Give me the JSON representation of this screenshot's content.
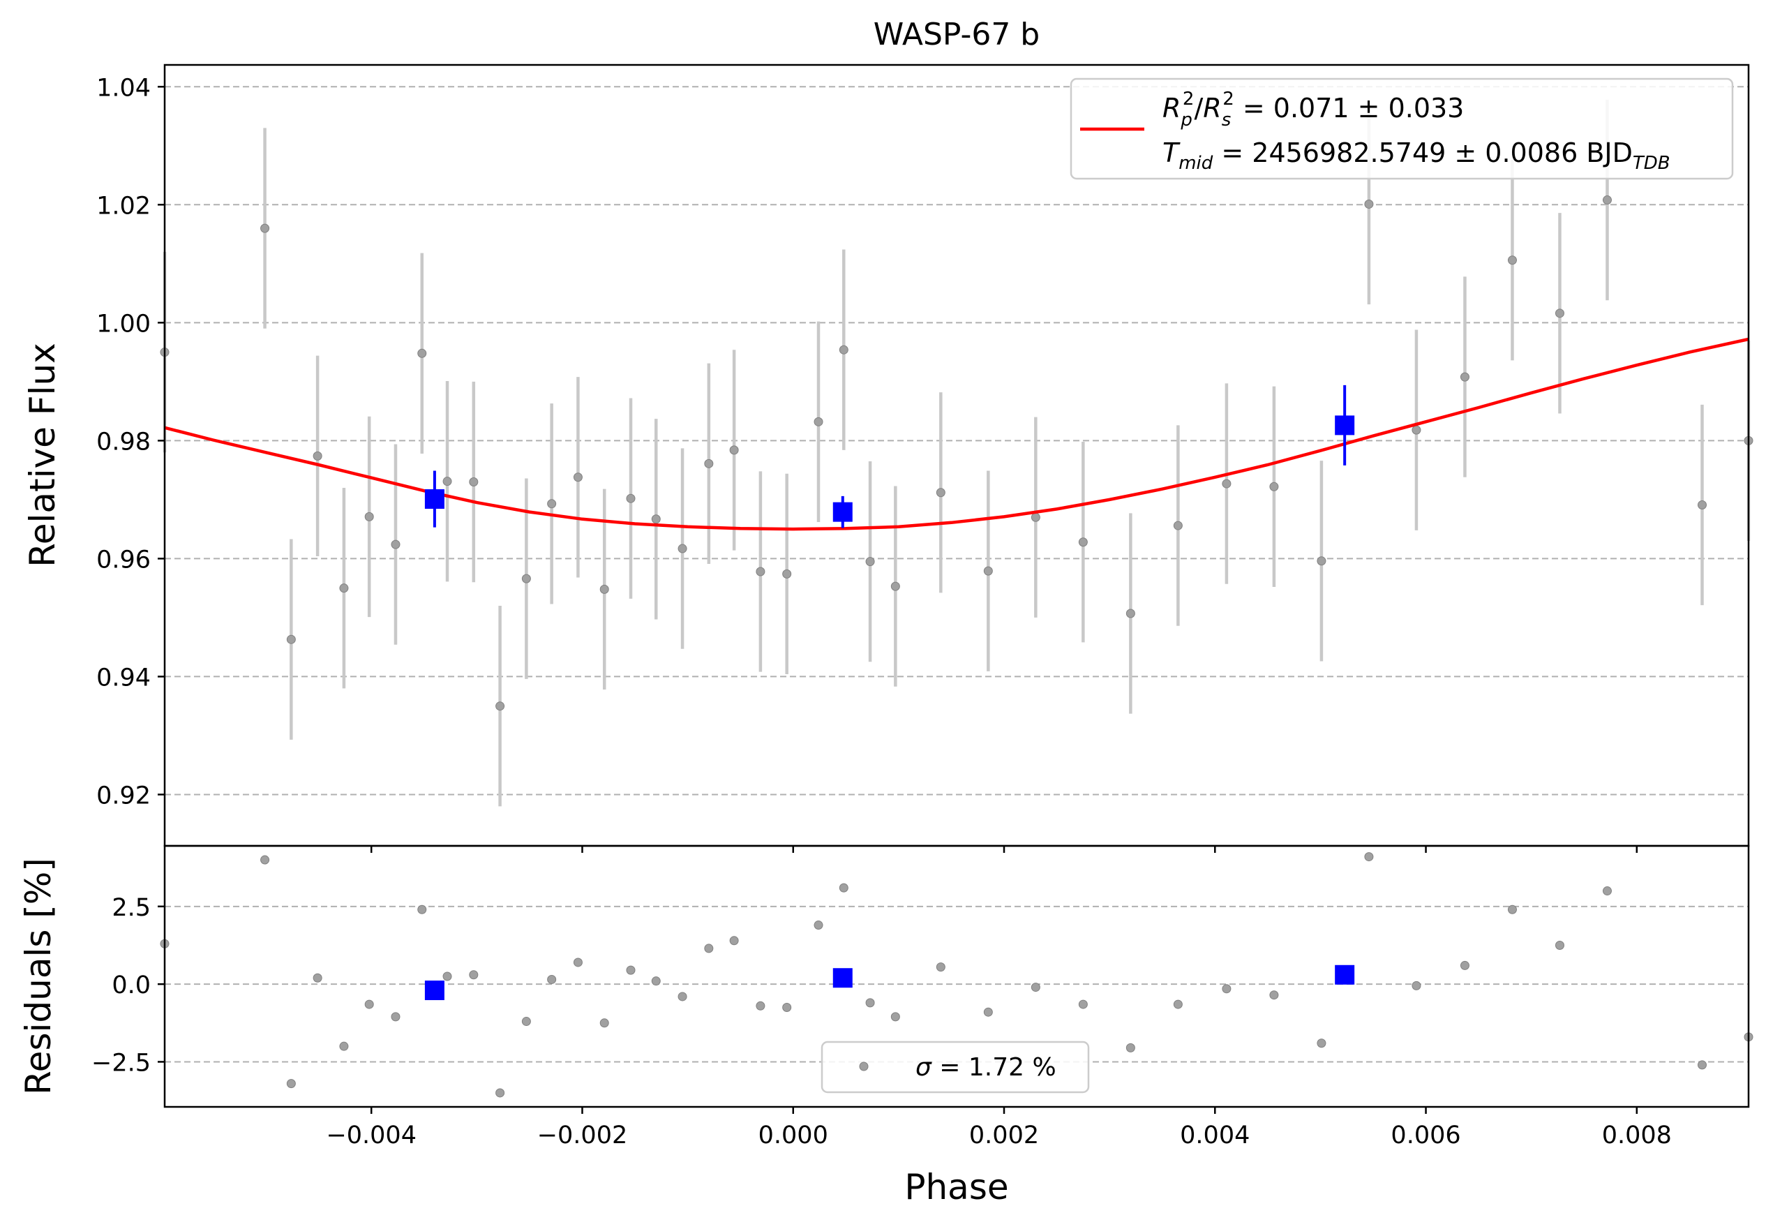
{
  "chart_data": [
    {
      "type": "scatter",
      "title": "WASP-67 b",
      "ylabel": "Relative Flux",
      "xlabel": "",
      "xlim": [
        -0.00596,
        0.00906
      ],
      "ylim": [
        0.9113,
        1.0437
      ],
      "grid": "horizontal-dashed",
      "x_ticks": [
        -0.004,
        -0.002,
        0.0,
        0.002,
        0.004,
        0.006,
        0.008
      ],
      "y_ticks": [
        0.92,
        0.94,
        0.96,
        0.98,
        1.0,
        1.02,
        1.04
      ],
      "y_tick_labels": [
        "0.92",
        "0.94",
        "0.96",
        "0.98",
        "1.00",
        "1.02",
        "1.04"
      ],
      "legend": {
        "placement": "top-right",
        "line1": {
          "lhs_R": "R",
          "lhs_p": "p",
          "lhs_s": "s",
          "sup": "2",
          "rest": " = 0.071 ± 0.033"
        },
        "line2": {
          "T": "T",
          "mid": "mid",
          "rest": " = 2456982.5749 ± 0.0086 BJD",
          "tdb": "TDB"
        }
      },
      "series": [
        {
          "role": "data",
          "color": "#a0a0a0",
          "x": [
            -0.00596,
            -0.00501,
            -0.00476,
            -0.00451,
            -0.00426,
            -0.00402,
            -0.00377,
            -0.00352,
            -0.00328,
            -0.00303,
            -0.00278,
            -0.00253,
            -0.00229,
            -0.00204,
            -0.00179,
            -0.00154,
            -0.0013,
            -0.00105,
            -0.0008,
            -0.00056,
            -0.00031,
            -6e-05,
            0.00024,
            0.00048,
            0.00073,
            0.00097,
            0.0014,
            0.00185,
            0.0023,
            0.00275,
            0.0032,
            0.00365,
            0.00411,
            0.00456,
            0.00501,
            0.00546,
            0.00591,
            0.00637,
            0.00682,
            0.00727,
            0.00772,
            0.00862,
            0.00906
          ],
          "y": [
            0.995,
            1.016,
            0.9463,
            0.9774,
            0.955,
            0.9671,
            0.9624,
            0.9948,
            0.9731,
            0.973,
            0.935,
            0.9566,
            0.9693,
            0.9738,
            0.9548,
            0.9702,
            0.9667,
            0.9617,
            0.9761,
            0.9784,
            0.9578,
            0.9574,
            0.9832,
            0.9954,
            0.9595,
            0.9553,
            0.9712,
            0.9579,
            0.967,
            0.9628,
            0.9507,
            0.9656,
            0.9727,
            0.9722,
            0.9596,
            1.0201,
            0.9818,
            0.9908,
            1.0106,
            1.0016,
            1.0208,
            0.9691,
            0.98
          ],
          "yerr": [
            0.017,
            0.017,
            0.017,
            0.017,
            0.017,
            0.017,
            0.017,
            0.017,
            0.017,
            0.017,
            0.017,
            0.017,
            0.017,
            0.017,
            0.017,
            0.017,
            0.017,
            0.017,
            0.017,
            0.017,
            0.017,
            0.017,
            0.017,
            0.017,
            0.017,
            0.017,
            0.017,
            0.017,
            0.017,
            0.017,
            0.017,
            0.017,
            0.017,
            0.017,
            0.017,
            0.017,
            0.017,
            0.017,
            0.017,
            0.017,
            0.017,
            0.017,
            0.017
          ]
        },
        {
          "role": "binned",
          "color": "#0000ff",
          "x": [
            -0.0034,
            0.00047,
            0.00523
          ],
          "y": [
            0.9701,
            0.9679,
            0.9826
          ],
          "yerr": [
            0.0048,
            0.0027,
            0.0068
          ]
        },
        {
          "role": "model",
          "color": "#ff0000",
          "type": "line",
          "x": [
            -0.00596,
            -0.0055,
            -0.005,
            -0.0045,
            -0.004,
            -0.0035,
            -0.003,
            -0.0025,
            -0.002,
            -0.0015,
            -0.001,
            -0.0005,
            0.0,
            0.0005,
            0.001,
            0.0015,
            0.002,
            0.0025,
            0.003,
            0.0035,
            0.004,
            0.0045,
            0.005,
            0.0055,
            0.006,
            0.0065,
            0.007,
            0.0075,
            0.008,
            0.0085,
            0.00906
          ],
          "y": [
            0.9822,
            0.9801,
            0.978,
            0.9759,
            0.9737,
            0.9715,
            0.9695,
            0.9679,
            0.9667,
            0.9659,
            0.9654,
            0.9651,
            0.965,
            0.9651,
            0.9654,
            0.9661,
            0.9671,
            0.9684,
            0.97,
            0.9718,
            0.9738,
            0.9759,
            0.9783,
            0.9808,
            0.9832,
            0.9856,
            0.9881,
            0.9905,
            0.9928,
            0.995,
            0.9972
          ]
        }
      ]
    },
    {
      "type": "scatter",
      "title": "",
      "ylabel": "Residuals [%]",
      "xlabel": "Phase",
      "xlim": [
        -0.00596,
        0.00906
      ],
      "ylim": [
        -3.95,
        4.45
      ],
      "grid": "horizontal-dashed",
      "x_ticks": [
        -0.004,
        -0.002,
        0.0,
        0.002,
        0.004,
        0.006,
        0.008
      ],
      "x_tick_labels": [
        "−0.004",
        "−0.002",
        "0.000",
        "0.002",
        "0.004",
        "0.006",
        "0.008"
      ],
      "y_ticks": [
        -2.5,
        0.0,
        2.5
      ],
      "y_tick_labels": [
        "−2.5",
        "0.0",
        "2.5"
      ],
      "legend": {
        "placement": "bottom-center",
        "sigma": "σ",
        "rest": " = 1.72 %"
      },
      "series": [
        {
          "role": "data",
          "color": "#a0a0a0",
          "x": [
            -0.00596,
            -0.00501,
            -0.00476,
            -0.00451,
            -0.00426,
            -0.00402,
            -0.00377,
            -0.00352,
            -0.00328,
            -0.00303,
            -0.00278,
            -0.00253,
            -0.00229,
            -0.00204,
            -0.00179,
            -0.00154,
            -0.0013,
            -0.00105,
            -0.0008,
            -0.00056,
            -0.00031,
            -6e-05,
            0.00024,
            0.00048,
            0.00073,
            0.00097,
            0.0014,
            0.00185,
            0.0023,
            0.00275,
            0.0032,
            0.00365,
            0.00411,
            0.00456,
            0.00501,
            0.00546,
            0.00591,
            0.00637,
            0.00682,
            0.00727,
            0.00772,
            0.00862,
            0.00906
          ],
          "y": [
            1.3,
            4.0,
            -3.2,
            0.2,
            -2.0,
            -0.65,
            -1.05,
            2.4,
            0.25,
            0.3,
            -3.5,
            -1.2,
            0.15,
            0.7,
            -1.25,
            0.45,
            0.1,
            -0.4,
            1.15,
            1.4,
            -0.7,
            -0.75,
            1.9,
            3.1,
            -0.6,
            -1.05,
            0.55,
            -0.9,
            -0.1,
            -0.65,
            -2.05,
            -0.65,
            -0.15,
            -0.35,
            -1.9,
            4.1,
            -0.05,
            0.6,
            2.4,
            1.25,
            3.0,
            -2.6,
            -1.7
          ]
        },
        {
          "role": "binned",
          "color": "#0000ff",
          "x": [
            -0.0034,
            0.00047,
            0.00523
          ],
          "y": [
            -0.2,
            0.2,
            0.3
          ]
        }
      ]
    }
  ]
}
